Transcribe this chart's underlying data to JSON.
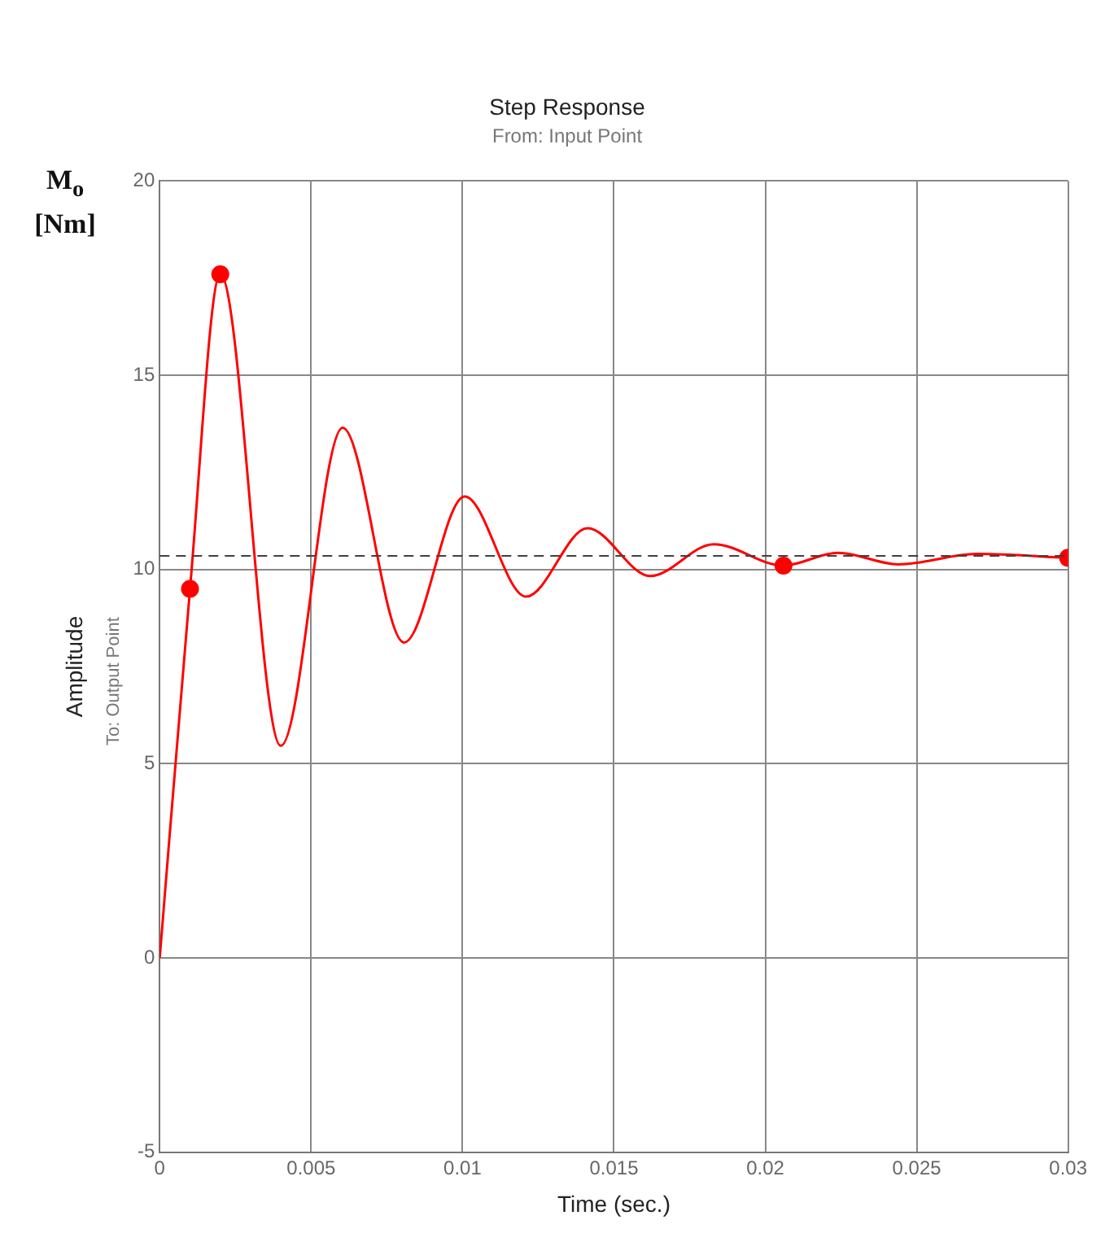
{
  "chart_data": {
    "type": "line",
    "title": "Step Response",
    "subtitle": "From: Input Point",
    "xlabel": "Time (sec.)",
    "ylabel": "Amplitude",
    "annotations": [
      "To: Output Point",
      "M$_{o}$ [Nm]"
    ],
    "xlim": [
      0,
      0.03
    ],
    "xticks": [
      0,
      0.005,
      0.01,
      0.015,
      0.02,
      0.025,
      0.03
    ],
    "ylim": [
      -5,
      20
    ],
    "yticks": [
      -5,
      0,
      5,
      10,
      15,
      20
    ],
    "grid": true,
    "legend": false,
    "series": [
      {
        "color": "#ff0000",
        "marker": "none",
        "line_style": "solid",
        "x": [
          0,
          0.001,
          0.002,
          0.004,
          0.00604,
          0.00807,
          0.01007,
          0.0121,
          0.01413,
          0.0162,
          0.0183,
          0.0206,
          0.0224,
          0.0244,
          0.027,
          0.03
        ],
        "values": [
          0,
          9.5,
          17.6,
          5.46,
          13.65,
          8.12,
          11.88,
          9.3,
          11.06,
          9.83,
          10.65,
          10.1,
          10.43,
          10.13,
          10.4,
          10.3
        ]
      },
      {
        "type": "scatter",
        "color": "#ff0000",
        "marker": "circle",
        "x": [
          0.001,
          0.002,
          0.0206,
          0.03
        ],
        "values": [
          9.5,
          17.6,
          10.1,
          10.3
        ]
      }
    ],
    "ref_lines": [
      {
        "axis": "y",
        "value": 10.35,
        "color": "#404040",
        "line_style": "dashed"
      }
    ]
  }
}
